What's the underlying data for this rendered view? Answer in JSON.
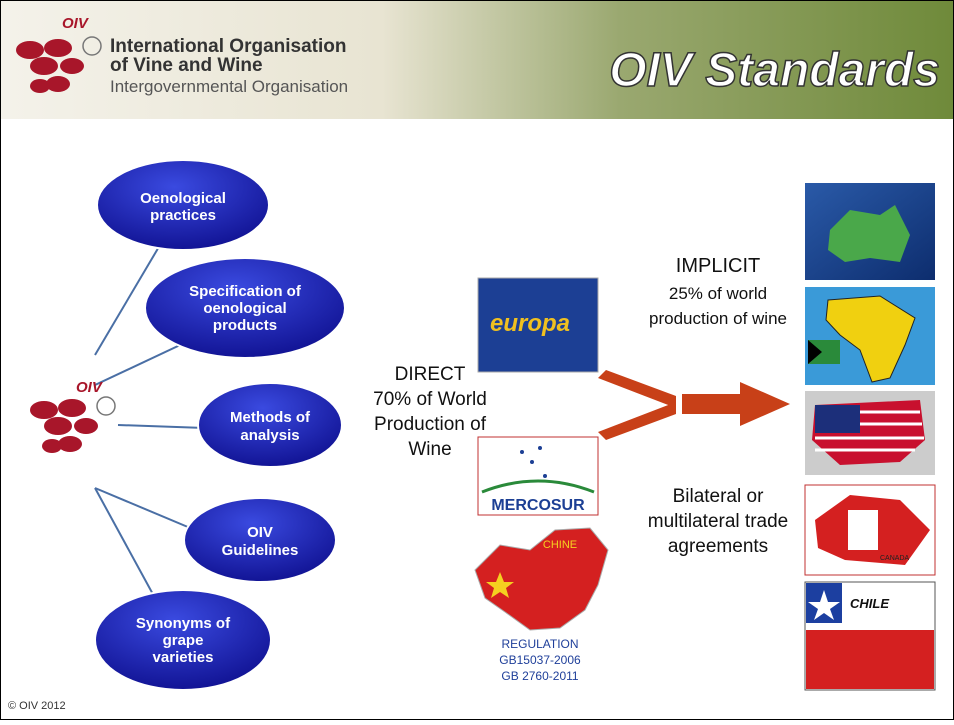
{
  "header": {
    "logo_label": "OIV",
    "org_name": [
      "International Organisation",
      "of Vine and Wine"
    ],
    "org_subtitle": "Intergovernmental Organisation",
    "title": "OIV Standards"
  },
  "center_logo_label": "OIV",
  "nodes": [
    {
      "label": [
        "Oenological",
        "practices"
      ]
    },
    {
      "label": [
        "Specification of",
        "oenological",
        "products"
      ]
    },
    {
      "label": [
        "Methods of",
        "analysis"
      ]
    },
    {
      "label": [
        "OIV",
        "Guidelines"
      ]
    },
    {
      "label": [
        "Synonyms of",
        "grape",
        "varieties"
      ]
    }
  ],
  "direct": {
    "label": [
      "DIRECT",
      "70% of World",
      "Production of",
      "Wine"
    ]
  },
  "implicit": {
    "label": [
      "IMPLICIT",
      "25% of world",
      "production of wine"
    ]
  },
  "bilateral": {
    "label": [
      "Bilateral or",
      "multilateral trade",
      "agreements"
    ]
  },
  "images": {
    "europa": "europa",
    "mercosur": "MERCOSUR",
    "china": "CHINE",
    "canada": "CANADA",
    "chile": "CHILE"
  },
  "china_regulation": [
    "REGULATION",
    "GB15037-2006",
    "GB 2760-2011"
  ],
  "footer": "© OIV 2012"
}
